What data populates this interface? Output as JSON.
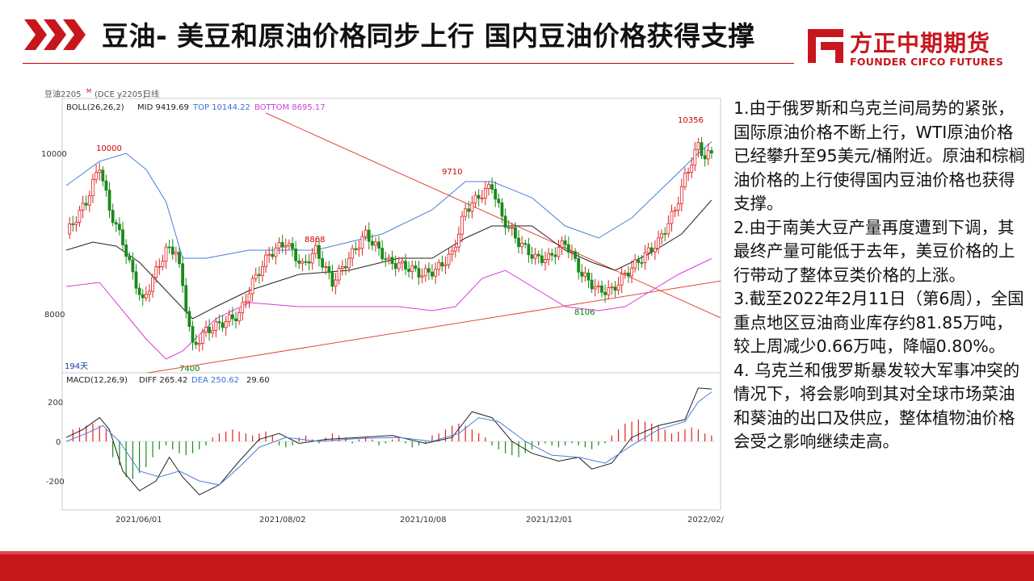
{
  "header": {
    "title": "豆油- 美豆和原油价格同步上行 国内豆油价格获得支撑",
    "logo_cn": "方正中期期货",
    "logo_en": "FOUNDER CIFCO FUTURES",
    "accent_color": "#c8161d"
  },
  "chart_data": {
    "type": "candlestick",
    "instrument_label": "豆油2205",
    "instrument_super": "M",
    "exchange_label": "(DCE y2205)",
    "period_label": "日线",
    "boll_label": "BOLL(26,26,2)",
    "boll_mid": "MID 9419.69",
    "boll_top": "TOP 10144.22",
    "boll_bottom": "BOTTOM 8695.17",
    "macd_label": "MACD(12,26,9)",
    "macd_diff": "DIFF 265.42",
    "macd_dea": "DEA 250.62",
    "macd_value": "29.60",
    "days_label": "194天",
    "price_ticks": [
      "10000",
      "8000"
    ],
    "macd_ticks": [
      "200",
      "0",
      "-200"
    ],
    "x_ticks": [
      "2021/06/01",
      "2021/08/02",
      "2021/10/08",
      "2021/12/01",
      "2022/02/"
    ],
    "annotations": [
      {
        "text": "10000",
        "color": "#d00000"
      },
      {
        "text": "7400",
        "color": "#008000"
      },
      {
        "text": "8868",
        "color": "#d00000"
      },
      {
        "text": "9710",
        "color": "#d00000"
      },
      {
        "text": "8106",
        "color": "#008000"
      },
      {
        "text": "10356",
        "color": "#d00000"
      }
    ],
    "price_path": [
      [
        0,
        9000
      ],
      [
        6,
        9400
      ],
      [
        10,
        9850
      ],
      [
        13,
        9300
      ],
      [
        17,
        8900
      ],
      [
        20,
        8500
      ],
      [
        23,
        8150
      ],
      [
        26,
        8450
      ],
      [
        30,
        8800
      ],
      [
        33,
        8800
      ],
      [
        35,
        8350
      ],
      [
        38,
        7600
      ],
      [
        42,
        7800
      ],
      [
        47,
        7900
      ],
      [
        52,
        8000
      ],
      [
        56,
        8400
      ],
      [
        61,
        8750
      ],
      [
        66,
        8900
      ],
      [
        71,
        8600
      ],
      [
        75,
        8800
      ],
      [
        80,
        8400
      ],
      [
        85,
        8700
      ],
      [
        90,
        9000
      ],
      [
        93,
        8850
      ],
      [
        97,
        8650
      ],
      [
        102,
        8600
      ],
      [
        107,
        8500
      ],
      [
        111,
        8550
      ],
      [
        116,
        8750
      ],
      [
        120,
        9300
      ],
      [
        125,
        9500
      ],
      [
        128,
        9600
      ],
      [
        131,
        9200
      ],
      [
        136,
        8900
      ],
      [
        141,
        8700
      ],
      [
        145,
        8700
      ],
      [
        150,
        8900
      ],
      [
        155,
        8500
      ],
      [
        160,
        8300
      ],
      [
        164,
        8300
      ],
      [
        168,
        8500
      ],
      [
        173,
        8700
      ],
      [
        178,
        8900
      ],
      [
        183,
        9300
      ],
      [
        186,
        9700
      ],
      [
        190,
        10100
      ],
      [
        192,
        9950
      ],
      [
        194,
        10000
      ]
    ],
    "boll_top_path": [
      [
        0,
        9600
      ],
      [
        10,
        9900
      ],
      [
        18,
        10000
      ],
      [
        24,
        9800
      ],
      [
        30,
        9400
      ],
      [
        35,
        8700
      ],
      [
        42,
        8700
      ],
      [
        55,
        8800
      ],
      [
        75,
        8800
      ],
      [
        95,
        9000
      ],
      [
        110,
        9300
      ],
      [
        120,
        9650
      ],
      [
        128,
        9650
      ],
      [
        140,
        9450
      ],
      [
        150,
        9100
      ],
      [
        160,
        8950
      ],
      [
        170,
        9200
      ],
      [
        180,
        9600
      ],
      [
        190,
        10000
      ],
      [
        194,
        10144
      ]
    ],
    "boll_mid_path": [
      [
        0,
        8800
      ],
      [
        8,
        8900
      ],
      [
        15,
        8850
      ],
      [
        22,
        8650
      ],
      [
        30,
        8300
      ],
      [
        38,
        7950
      ],
      [
        45,
        8100
      ],
      [
        55,
        8300
      ],
      [
        70,
        8500
      ],
      [
        85,
        8550
      ],
      [
        100,
        8700
      ],
      [
        110,
        8700
      ],
      [
        120,
        8950
      ],
      [
        128,
        9100
      ],
      [
        140,
        9100
      ],
      [
        150,
        8800
      ],
      [
        158,
        8650
      ],
      [
        165,
        8550
      ],
      [
        175,
        8750
      ],
      [
        185,
        9000
      ],
      [
        194,
        9420
      ]
    ],
    "boll_bottom_path": [
      [
        0,
        8350
      ],
      [
        10,
        8400
      ],
      [
        18,
        8000
      ],
      [
        24,
        7700
      ],
      [
        30,
        7450
      ],
      [
        35,
        7550
      ],
      [
        45,
        7950
      ],
      [
        55,
        8150
      ],
      [
        70,
        8100
      ],
      [
        85,
        8100
      ],
      [
        100,
        8100
      ],
      [
        110,
        8050
      ],
      [
        117,
        8100
      ],
      [
        125,
        8450
      ],
      [
        132,
        8550
      ],
      [
        140,
        8350
      ],
      [
        150,
        8100
      ],
      [
        160,
        8050
      ],
      [
        168,
        8100
      ],
      [
        176,
        8300
      ],
      [
        184,
        8500
      ],
      [
        194,
        8695
      ]
    ],
    "trendline_up": [
      [
        20,
        7250
      ],
      [
        200,
        8440
      ]
    ],
    "trendline_down": [
      [
        60,
        10500
      ],
      [
        200,
        7900
      ]
    ],
    "macd_diff_path": [
      [
        0,
        20
      ],
      [
        5,
        60
      ],
      [
        10,
        120
      ],
      [
        13,
        60
      ],
      [
        17,
        -150
      ],
      [
        22,
        -250
      ],
      [
        27,
        -200
      ],
      [
        31,
        -80
      ],
      [
        35,
        -180
      ],
      [
        40,
        -270
      ],
      [
        46,
        -220
      ],
      [
        52,
        -100
      ],
      [
        58,
        10
      ],
      [
        64,
        40
      ],
      [
        70,
        -10
      ],
      [
        78,
        10
      ],
      [
        88,
        20
      ],
      [
        98,
        30
      ],
      [
        108,
        -10
      ],
      [
        116,
        20
      ],
      [
        122,
        150
      ],
      [
        128,
        120
      ],
      [
        134,
        0
      ],
      [
        140,
        -60
      ],
      [
        148,
        -100
      ],
      [
        154,
        -80
      ],
      [
        158,
        -140
      ],
      [
        164,
        -110
      ],
      [
        170,
        20
      ],
      [
        178,
        80
      ],
      [
        186,
        110
      ],
      [
        190,
        270
      ],
      [
        194,
        265
      ]
    ],
    "macd_dea_path": [
      [
        0,
        0
      ],
      [
        6,
        40
      ],
      [
        11,
        80
      ],
      [
        16,
        0
      ],
      [
        22,
        -150
      ],
      [
        28,
        -180
      ],
      [
        34,
        -150
      ],
      [
        40,
        -200
      ],
      [
        46,
        -220
      ],
      [
        52,
        -130
      ],
      [
        58,
        -30
      ],
      [
        66,
        20
      ],
      [
        76,
        0
      ],
      [
        88,
        15
      ],
      [
        100,
        20
      ],
      [
        110,
        0
      ],
      [
        118,
        40
      ],
      [
        124,
        120
      ],
      [
        130,
        100
      ],
      [
        138,
        0
      ],
      [
        146,
        -70
      ],
      [
        154,
        -80
      ],
      [
        162,
        -110
      ],
      [
        170,
        -20
      ],
      [
        178,
        60
      ],
      [
        186,
        100
      ],
      [
        190,
        200
      ],
      [
        194,
        250
      ]
    ],
    "macd_hist": [
      [
        2,
        60
      ],
      [
        4,
        70
      ],
      [
        6,
        80
      ],
      [
        8,
        90
      ],
      [
        10,
        80
      ],
      [
        12,
        60
      ],
      [
        14,
        -80
      ],
      [
        16,
        -120
      ],
      [
        18,
        -180
      ],
      [
        20,
        -190
      ],
      [
        22,
        -160
      ],
      [
        24,
        -130
      ],
      [
        26,
        -80
      ],
      [
        28,
        -40
      ],
      [
        30,
        -20
      ],
      [
        32,
        -40
      ],
      [
        34,
        -60
      ],
      [
        36,
        -70
      ],
      [
        38,
        -60
      ],
      [
        40,
        -40
      ],
      [
        42,
        -20
      ],
      [
        44,
        20
      ],
      [
        46,
        40
      ],
      [
        48,
        50
      ],
      [
        50,
        60
      ],
      [
        52,
        50
      ],
      [
        54,
        40
      ],
      [
        56,
        30
      ],
      [
        58,
        40
      ],
      [
        60,
        50
      ],
      [
        62,
        30
      ],
      [
        64,
        -20
      ],
      [
        66,
        -30
      ],
      [
        68,
        -20
      ],
      [
        70,
        20
      ],
      [
        72,
        30
      ],
      [
        74,
        10
      ],
      [
        76,
        -10
      ],
      [
        78,
        20
      ],
      [
        80,
        40
      ],
      [
        82,
        30
      ],
      [
        84,
        20
      ],
      [
        86,
        -10
      ],
      [
        88,
        10
      ],
      [
        90,
        20
      ],
      [
        92,
        10
      ],
      [
        94,
        -20
      ],
      [
        96,
        -10
      ],
      [
        98,
        10
      ],
      [
        100,
        20
      ],
      [
        102,
        -10
      ],
      [
        104,
        -30
      ],
      [
        106,
        -20
      ],
      [
        108,
        -10
      ],
      [
        110,
        30
      ],
      [
        112,
        40
      ],
      [
        114,
        60
      ],
      [
        116,
        80
      ],
      [
        118,
        90
      ],
      [
        120,
        80
      ],
      [
        122,
        60
      ],
      [
        124,
        40
      ],
      [
        126,
        20
      ],
      [
        128,
        -20
      ],
      [
        130,
        -40
      ],
      [
        132,
        -60
      ],
      [
        134,
        -70
      ],
      [
        136,
        -80
      ],
      [
        138,
        -60
      ],
      [
        140,
        -40
      ],
      [
        142,
        -20
      ],
      [
        144,
        -10
      ],
      [
        146,
        -20
      ],
      [
        148,
        -30
      ],
      [
        150,
        -20
      ],
      [
        152,
        -10
      ],
      [
        154,
        -20
      ],
      [
        156,
        -30
      ],
      [
        158,
        -40
      ],
      [
        160,
        -20
      ],
      [
        162,
        -10
      ],
      [
        164,
        30
      ],
      [
        166,
        60
      ],
      [
        168,
        90
      ],
      [
        170,
        100
      ],
      [
        172,
        110
      ],
      [
        174,
        100
      ],
      [
        176,
        90
      ],
      [
        178,
        80
      ],
      [
        180,
        60
      ],
      [
        182,
        40
      ],
      [
        184,
        50
      ],
      [
        186,
        60
      ],
      [
        188,
        70
      ],
      [
        190,
        60
      ],
      [
        192,
        40
      ],
      [
        194,
        30
      ]
    ]
  },
  "commentary": [
    "1.由于俄罗斯和乌克兰间局势的紧张，国际原油价格不断上行，WTI原油价格已经攀升至95美元/桶附近。原油和棕榈油价格的上行使得国内豆油价格也获得支撑。",
    "2.由于南美大豆产量再度遭到下调，其最终产量可能低于去年，美豆价格的上行带动了整体豆类价格的上涨。",
    "3.截至2022年2月11日（第6周），全国重点地区豆油商业库存约81.85万吨，较上周减少0.66万吨，降幅0.80%。",
    "4. 乌克兰和俄罗斯暴发较大军事冲突的情况下，将会影响到其对全球市场菜油和葵油的出口及供应，整体植物油价格会受之影响继续走高。"
  ]
}
